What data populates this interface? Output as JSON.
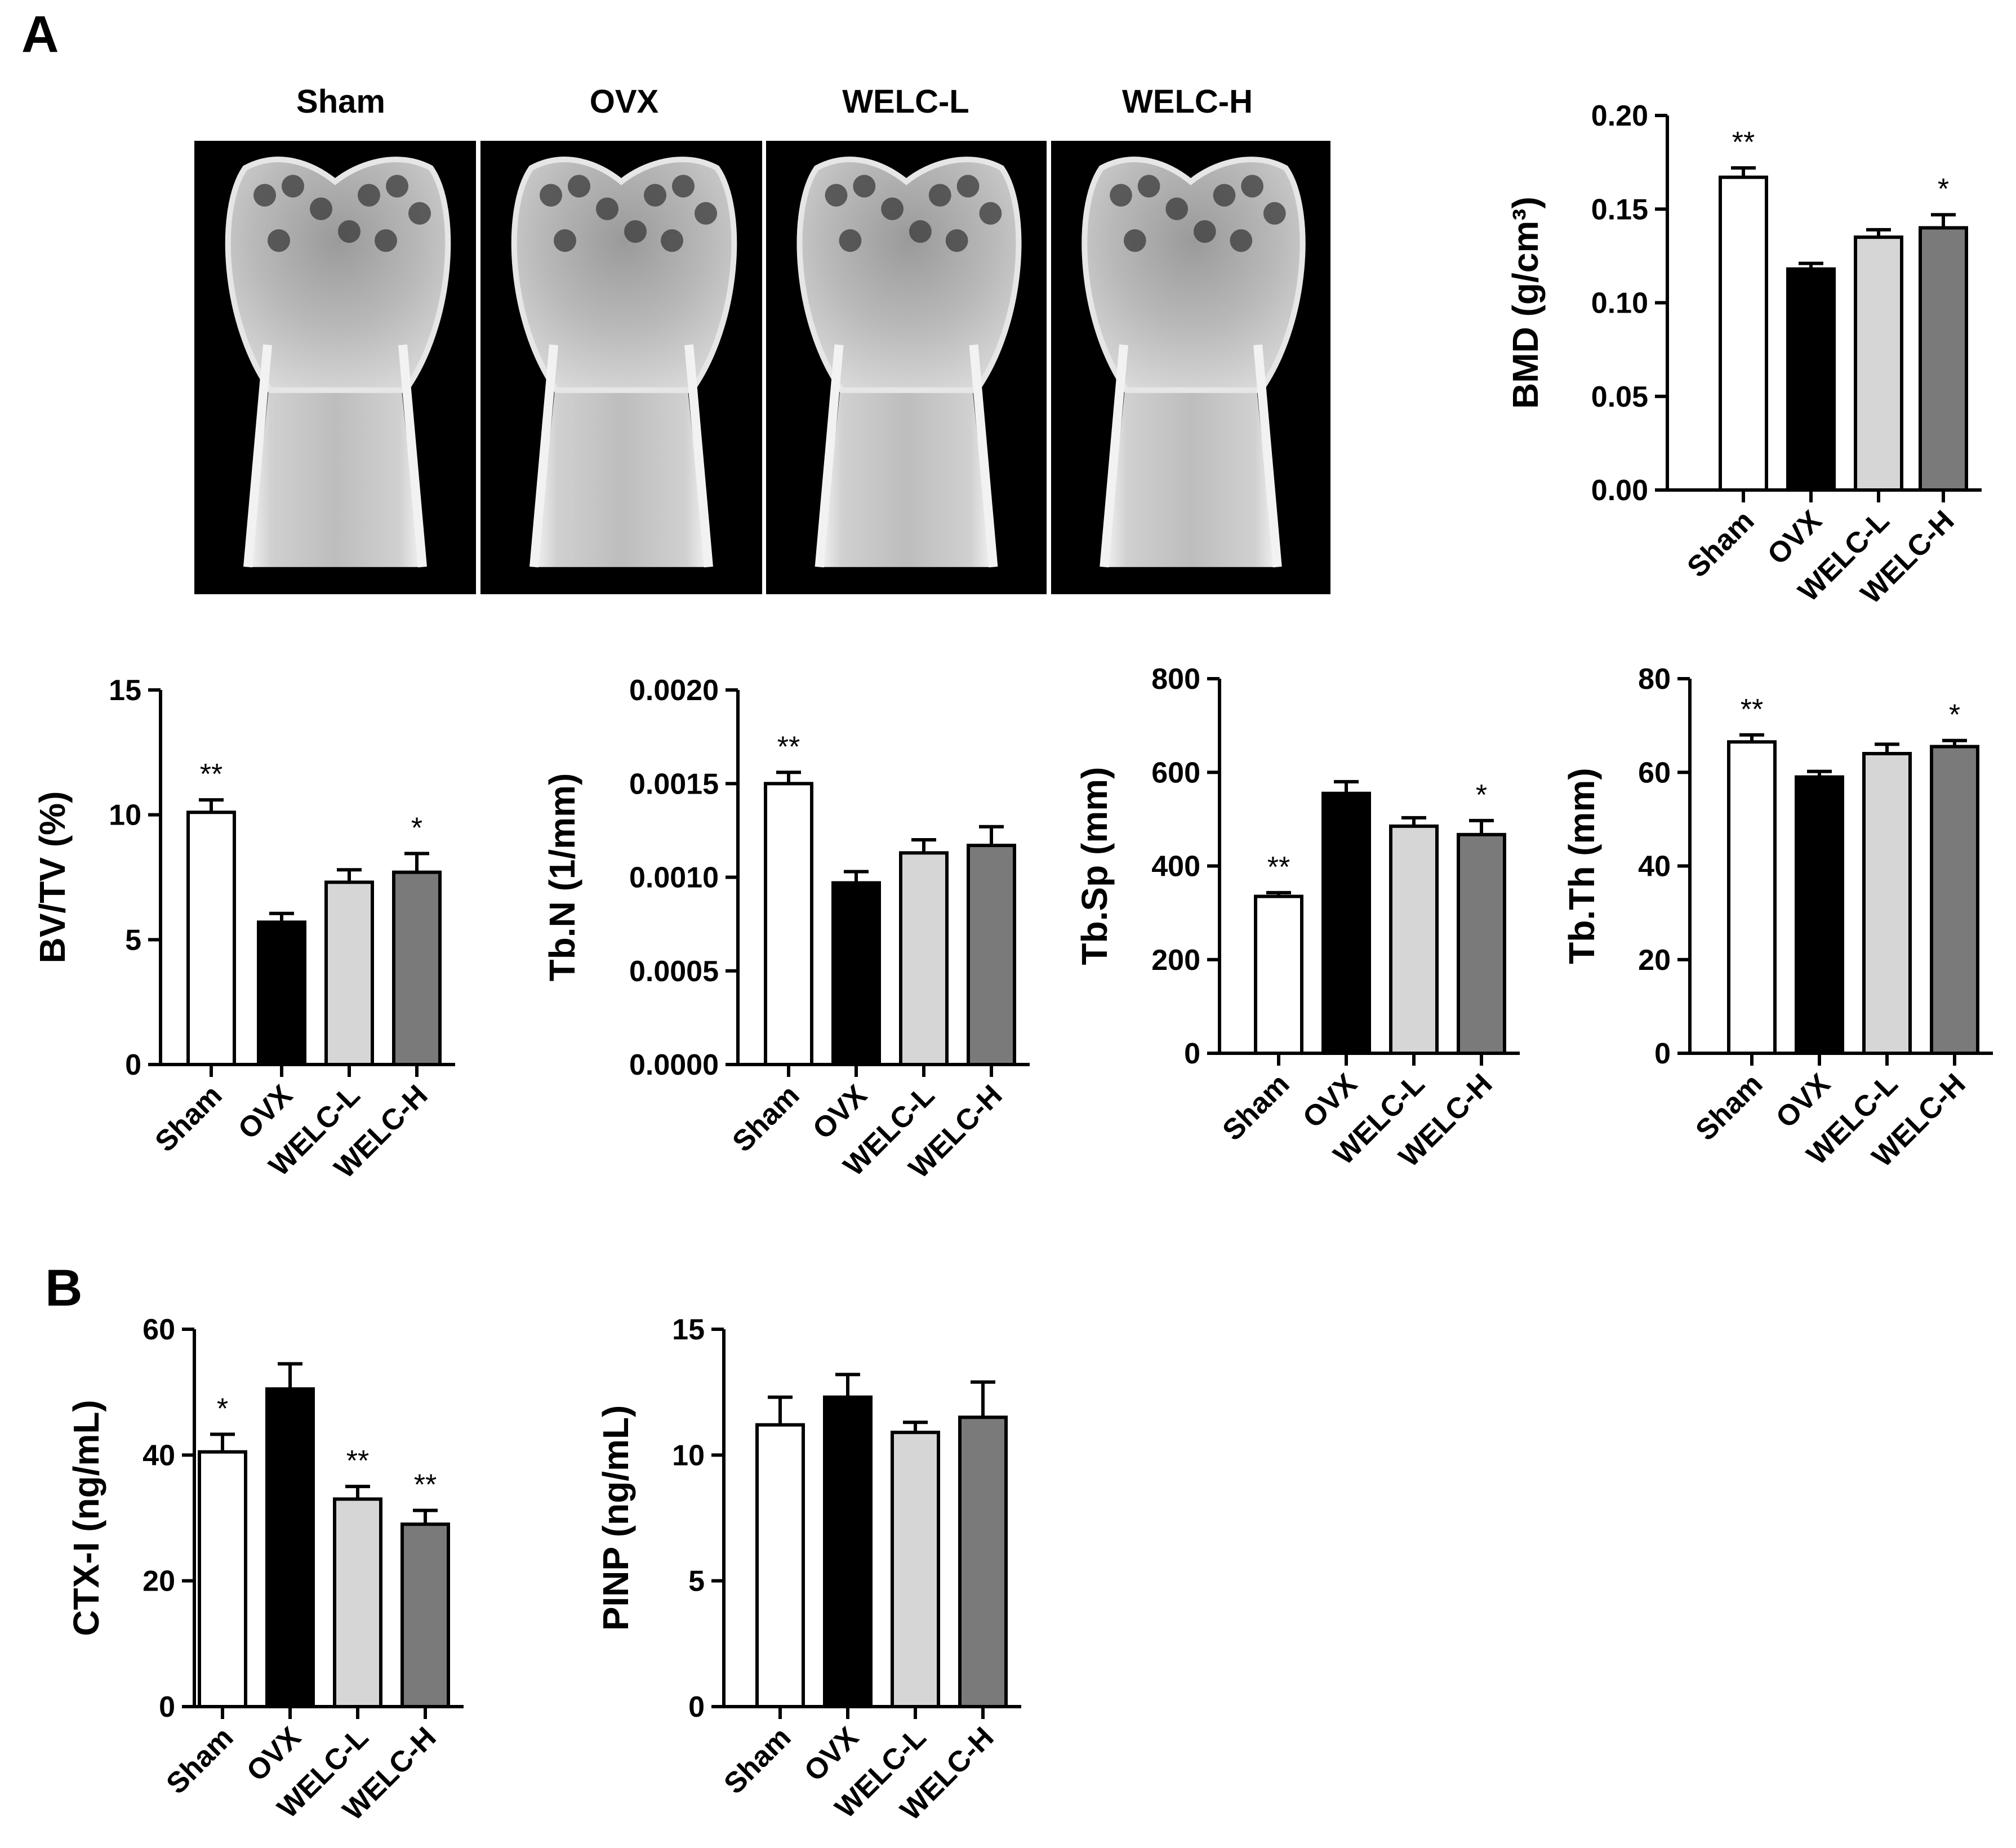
{
  "figure": {
    "panel_a_letter": "A",
    "panel_b_letter": "B",
    "image_labels": [
      "Sham",
      "OVX",
      "WELC-L",
      "WELC-H"
    ]
  },
  "colors": {
    "Sham": "#ffffff",
    "OVX": "#000000",
    "WELC-L": "#d6d6d6",
    "WELC-H": "#7a7a7a"
  },
  "chart_data": [
    {
      "id": "bmd",
      "type": "bar",
      "categories": [
        "Sham",
        "OVX",
        "WELC-L",
        "WELC-H"
      ],
      "values": [
        0.167,
        0.118,
        0.135,
        0.14
      ],
      "errors": [
        0.005,
        0.003,
        0.004,
        0.007
      ],
      "significance": [
        "**",
        "",
        "",
        "*"
      ],
      "ylabel": "BMD (g/cm³)",
      "ylim": [
        0,
        0.2
      ],
      "yticks": [
        "0.00",
        "0.05",
        "0.10",
        "0.15",
        "0.20"
      ]
    },
    {
      "id": "bvtv",
      "type": "bar",
      "categories": [
        "Sham",
        "OVX",
        "WELC-L",
        "WELC-H"
      ],
      "values": [
        10.1,
        5.7,
        7.3,
        7.7
      ],
      "errors": [
        0.5,
        0.35,
        0.5,
        0.75
      ],
      "significance": [
        "**",
        "",
        "",
        "*"
      ],
      "ylabel": "BV/TV (%)",
      "ylim": [
        0,
        15
      ],
      "yticks": [
        "0",
        "5",
        "10",
        "15"
      ]
    },
    {
      "id": "tbn",
      "type": "bar",
      "categories": [
        "Sham",
        "OVX",
        "WELC-L",
        "WELC-H"
      ],
      "values": [
        0.0015,
        0.00097,
        0.00113,
        0.00117
      ],
      "errors": [
        6e-05,
        6e-05,
        7e-05,
        0.0001
      ],
      "significance": [
        "**",
        "",
        "",
        ""
      ],
      "ylabel": "Tb.N (1/mm)",
      "ylim": [
        0,
        0.002
      ],
      "yticks": [
        "0.0000",
        "0.0005",
        "0.0010",
        "0.0015",
        "0.0020"
      ]
    },
    {
      "id": "tbsp",
      "type": "bar",
      "categories": [
        "Sham",
        "OVX",
        "WELC-L",
        "WELC-H"
      ],
      "values": [
        335,
        555,
        485,
        467
      ],
      "errors": [
        8,
        25,
        18,
        30
      ],
      "significance": [
        "**",
        "",
        "",
        "*"
      ],
      "ylabel": "Tb.Sp (mm)",
      "ylim": [
        0,
        800
      ],
      "yticks": [
        "0",
        "200",
        "400",
        "600",
        "800"
      ]
    },
    {
      "id": "tbth",
      "type": "bar",
      "categories": [
        "Sham",
        "OVX",
        "WELC-L",
        "WELC-H"
      ],
      "values": [
        66.5,
        59,
        64,
        65.5
      ],
      "errors": [
        1.5,
        1.2,
        2,
        1.3
      ],
      "significance": [
        "**",
        "",
        "",
        "*"
      ],
      "ylabel": "Tb.Th (mm)",
      "ylim": [
        0,
        80
      ],
      "yticks": [
        "0",
        "20",
        "40",
        "60",
        "80"
      ]
    },
    {
      "id": "ctx",
      "type": "bar",
      "categories": [
        "Sham",
        "OVX",
        "WELC-L",
        "WELC-H"
      ],
      "values": [
        40.5,
        50.5,
        33,
        29
      ],
      "errors": [
        2.8,
        4,
        2,
        2.2
      ],
      "significance": [
        "*",
        "",
        "**",
        "**"
      ],
      "ylabel": "CTX-I (ng/mL)",
      "ylim": [
        0,
        60
      ],
      "yticks": [
        "0",
        "20",
        "40",
        "60"
      ]
    },
    {
      "id": "pinp",
      "type": "bar",
      "categories": [
        "Sham",
        "OVX",
        "WELC-L",
        "WELC-H"
      ],
      "values": [
        11.2,
        12.3,
        10.9,
        11.5
      ],
      "errors": [
        1.1,
        0.9,
        0.4,
        1.4
      ],
      "significance": [
        "",
        "",
        "",
        ""
      ],
      "ylabel": "PINP (ng/mL)",
      "ylim": [
        0,
        15
      ],
      "yticks": [
        "0",
        "5",
        "10",
        "15"
      ]
    }
  ]
}
